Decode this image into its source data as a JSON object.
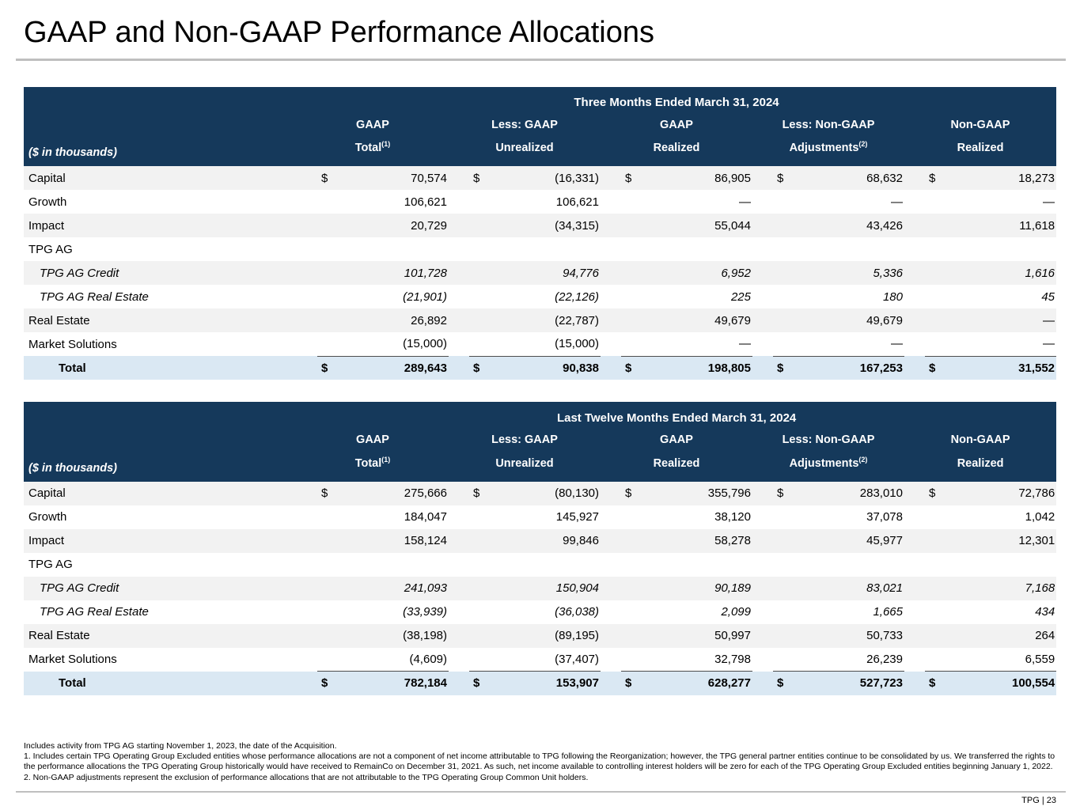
{
  "title": "GAAP and Non-GAAP Performance Allocations",
  "units_label": "($ in thousands)",
  "columns": [
    {
      "line1": "GAAP",
      "line2": "Total",
      "sup": "(1)"
    },
    {
      "line1": "Less: GAAP",
      "line2": "Unrealized",
      "sup": ""
    },
    {
      "line1": "GAAP",
      "line2": "Realized",
      "sup": ""
    },
    {
      "line1": "Less: Non-GAAP",
      "line2": "Adjustments",
      "sup": "(2)"
    },
    {
      "line1": "Non-GAAP",
      "line2": "Realized",
      "sup": ""
    }
  ],
  "tables": [
    {
      "period_title": "Three Months Ended March 31, 2024",
      "rows": [
        {
          "label": "Capital",
          "style": "normal",
          "underline": false,
          "cells": [
            {
              "cur": "$",
              "val": "70,574"
            },
            {
              "cur": "$",
              "val": "(16,331)"
            },
            {
              "cur": "$",
              "val": "86,905"
            },
            {
              "cur": "$",
              "val": "68,632"
            },
            {
              "cur": "$",
              "val": "18,273"
            }
          ]
        },
        {
          "label": "Growth",
          "style": "normal",
          "underline": false,
          "cells": [
            {
              "cur": "",
              "val": "106,621"
            },
            {
              "cur": "",
              "val": "106,621"
            },
            {
              "cur": "",
              "val": "—"
            },
            {
              "cur": "",
              "val": "—"
            },
            {
              "cur": "",
              "val": "—"
            }
          ]
        },
        {
          "label": "Impact",
          "style": "normal",
          "underline": false,
          "cells": [
            {
              "cur": "",
              "val": "20,729"
            },
            {
              "cur": "",
              "val": "(34,315)"
            },
            {
              "cur": "",
              "val": "55,044"
            },
            {
              "cur": "",
              "val": "43,426"
            },
            {
              "cur": "",
              "val": "11,618"
            }
          ]
        },
        {
          "label": "TPG AG",
          "style": "normal",
          "underline": false,
          "cells": [
            {
              "cur": "",
              "val": ""
            },
            {
              "cur": "",
              "val": ""
            },
            {
              "cur": "",
              "val": ""
            },
            {
              "cur": "",
              "val": ""
            },
            {
              "cur": "",
              "val": ""
            }
          ]
        },
        {
          "label": "TPG AG Credit",
          "style": "italic",
          "underline": false,
          "cells": [
            {
              "cur": "",
              "val": "101,728"
            },
            {
              "cur": "",
              "val": "94,776"
            },
            {
              "cur": "",
              "val": "6,952"
            },
            {
              "cur": "",
              "val": "5,336"
            },
            {
              "cur": "",
              "val": "1,616"
            }
          ]
        },
        {
          "label": "TPG AG Real Estate",
          "style": "italic",
          "underline": false,
          "cells": [
            {
              "cur": "",
              "val": "(21,901)"
            },
            {
              "cur": "",
              "val": "(22,126)"
            },
            {
              "cur": "",
              "val": "225"
            },
            {
              "cur": "",
              "val": "180"
            },
            {
              "cur": "",
              "val": "45"
            }
          ]
        },
        {
          "label": "Real Estate",
          "style": "normal",
          "underline": false,
          "cells": [
            {
              "cur": "",
              "val": "26,892"
            },
            {
              "cur": "",
              "val": "(22,787)"
            },
            {
              "cur": "",
              "val": "49,679"
            },
            {
              "cur": "",
              "val": "49,679"
            },
            {
              "cur": "",
              "val": "—"
            }
          ]
        },
        {
          "label": "Market Solutions",
          "style": "normal",
          "underline": true,
          "cells": [
            {
              "cur": "",
              "val": "(15,000)"
            },
            {
              "cur": "",
              "val": "(15,000)"
            },
            {
              "cur": "",
              "val": "—"
            },
            {
              "cur": "",
              "val": "—"
            },
            {
              "cur": "",
              "val": "—"
            }
          ]
        },
        {
          "label": "Total",
          "style": "total",
          "underline": false,
          "cells": [
            {
              "cur": "$",
              "val": "289,643"
            },
            {
              "cur": "$",
              "val": "90,838"
            },
            {
              "cur": "$",
              "val": "198,805"
            },
            {
              "cur": "$",
              "val": "167,253"
            },
            {
              "cur": "$",
              "val": "31,552"
            }
          ]
        }
      ]
    },
    {
      "period_title": "Last Twelve Months Ended March 31, 2024",
      "rows": [
        {
          "label": "Capital",
          "style": "normal",
          "underline": false,
          "cells": [
            {
              "cur": "$",
              "val": "275,666"
            },
            {
              "cur": "$",
              "val": "(80,130)"
            },
            {
              "cur": "$",
              "val": "355,796"
            },
            {
              "cur": "$",
              "val": "283,010"
            },
            {
              "cur": "$",
              "val": "72,786"
            }
          ]
        },
        {
          "label": "Growth",
          "style": "normal",
          "underline": false,
          "cells": [
            {
              "cur": "",
              "val": "184,047"
            },
            {
              "cur": "",
              "val": "145,927"
            },
            {
              "cur": "",
              "val": "38,120"
            },
            {
              "cur": "",
              "val": "37,078"
            },
            {
              "cur": "",
              "val": "1,042"
            }
          ]
        },
        {
          "label": "Impact",
          "style": "normal",
          "underline": false,
          "cells": [
            {
              "cur": "",
              "val": "158,124"
            },
            {
              "cur": "",
              "val": "99,846"
            },
            {
              "cur": "",
              "val": "58,278"
            },
            {
              "cur": "",
              "val": "45,977"
            },
            {
              "cur": "",
              "val": "12,301"
            }
          ]
        },
        {
          "label": "TPG AG",
          "style": "normal",
          "underline": false,
          "cells": [
            {
              "cur": "",
              "val": ""
            },
            {
              "cur": "",
              "val": ""
            },
            {
              "cur": "",
              "val": ""
            },
            {
              "cur": "",
              "val": ""
            },
            {
              "cur": "",
              "val": ""
            }
          ]
        },
        {
          "label": "TPG AG Credit",
          "style": "italic",
          "underline": false,
          "cells": [
            {
              "cur": "",
              "val": "241,093"
            },
            {
              "cur": "",
              "val": "150,904"
            },
            {
              "cur": "",
              "val": "90,189"
            },
            {
              "cur": "",
              "val": "83,021"
            },
            {
              "cur": "",
              "val": "7,168"
            }
          ]
        },
        {
          "label": "TPG AG Real Estate",
          "style": "italic",
          "underline": false,
          "cells": [
            {
              "cur": "",
              "val": "(33,939)"
            },
            {
              "cur": "",
              "val": "(36,038)"
            },
            {
              "cur": "",
              "val": "2,099"
            },
            {
              "cur": "",
              "val": "1,665"
            },
            {
              "cur": "",
              "val": "434"
            }
          ]
        },
        {
          "label": "Real Estate",
          "style": "normal",
          "underline": false,
          "cells": [
            {
              "cur": "",
              "val": "(38,198)"
            },
            {
              "cur": "",
              "val": "(89,195)"
            },
            {
              "cur": "",
              "val": "50,997"
            },
            {
              "cur": "",
              "val": "50,733"
            },
            {
              "cur": "",
              "val": "264"
            }
          ]
        },
        {
          "label": "Market Solutions",
          "style": "normal",
          "underline": true,
          "cells": [
            {
              "cur": "",
              "val": "(4,609)"
            },
            {
              "cur": "",
              "val": "(37,407)"
            },
            {
              "cur": "",
              "val": "32,798"
            },
            {
              "cur": "",
              "val": "26,239"
            },
            {
              "cur": "",
              "val": "6,559"
            }
          ]
        },
        {
          "label": "Total",
          "style": "total",
          "underline": false,
          "cells": [
            {
              "cur": "$",
              "val": "782,184"
            },
            {
              "cur": "$",
              "val": "153,907"
            },
            {
              "cur": "$",
              "val": "628,277"
            },
            {
              "cur": "$",
              "val": "527,723"
            },
            {
              "cur": "$",
              "val": "100,554"
            }
          ]
        }
      ]
    }
  ],
  "footnotes": [
    "Includes activity from TPG AG starting November 1, 2023, the date of the Acquisition.",
    "1. Includes certain TPG Operating Group Excluded entities whose performance allocations are not a component of net income attributable to TPG following the Reorganization; however, the TPG general partner entities continue to be consolidated by us. We transferred the rights to the performance allocations the TPG Operating Group historically would have received to RemainCo on December 31, 2021. As such, net income available to controlling interest holders will be zero for each of the TPG Operating Group Excluded entities beginning January 1, 2022.",
    "2. Non-GAAP adjustments represent the exclusion of performance allocations that are not attributable to the TPG Operating Group Common Unit holders."
  ],
  "footer": {
    "label": "TPG | 23"
  },
  "colors": {
    "header-bg": "#15395B",
    "header-text": "#FFFFFF",
    "row-alt": "#F2F2F2",
    "row-total": "#DAE8F3",
    "rule": "#BFBFBF",
    "underline": "#4D4D4D",
    "text": "#000000"
  }
}
